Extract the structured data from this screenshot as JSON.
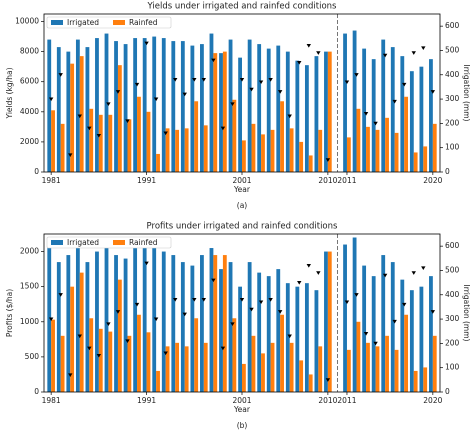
{
  "chart_data": [
    {
      "type": "bar",
      "title": "Yields under irrigated and rainfed conditions",
      "xlabel": "Year",
      "ylabel": "Yields (kg/ha)",
      "y2label": "Irrigation (mm)",
      "caption": "(a)",
      "x": [
        1981,
        1982,
        1983,
        1984,
        1985,
        1986,
        1987,
        1988,
        1989,
        1990,
        1991,
        1992,
        1993,
        1994,
        1995,
        1996,
        1997,
        1998,
        1999,
        2000,
        2001,
        2002,
        2003,
        2004,
        2005,
        2006,
        2007,
        2008,
        2009,
        2010,
        2011,
        2012,
        2013,
        2014,
        2015,
        2016,
        2017,
        2018,
        2019,
        2020
      ],
      "xticks": [
        1981,
        1991,
        2001,
        2010,
        2011,
        2020
      ],
      "vline_x": 2010.5,
      "ylim": [
        0,
        10500
      ],
      "yticks": [
        0,
        2000,
        4000,
        6000,
        8000,
        10000
      ],
      "y2lim": [
        0,
        650
      ],
      "y2ticks": [
        0,
        100,
        200,
        300,
        400,
        500,
        600
      ],
      "legend": "upper left",
      "series": [
        {
          "name": "Irrigated",
          "color": "#1f77b4",
          "values": [
            8800,
            8300,
            8000,
            8800,
            8300,
            8900,
            9200,
            8700,
            8500,
            8900,
            8900,
            9000,
            8900,
            8700,
            8700,
            8400,
            8500,
            9200,
            7900,
            8800,
            7600,
            8800,
            8500,
            8200,
            8400,
            8000,
            7400,
            7100,
            7700,
            8000,
            9200,
            9400,
            8200,
            7500,
            8800,
            8300,
            7700,
            6700,
            7000,
            7500
          ]
        },
        {
          "name": "Rainfed",
          "color": "#ff7f0e",
          "values": [
            4100,
            3200,
            7200,
            7700,
            4200,
            3800,
            3800,
            7100,
            3500,
            5000,
            4000,
            1200,
            2900,
            2800,
            2900,
            4700,
            3100,
            7900,
            8000,
            4800,
            2100,
            3200,
            2500,
            2800,
            4700,
            2900,
            2000,
            1100,
            2800,
            8000,
            2300,
            4200,
            3000,
            2800,
            3600,
            2600,
            5000,
            1300,
            1700,
            3200
          ]
        },
        {
          "color": "#000000",
          "marker": "v",
          "axis": "y2",
          "values": [
            300,
            400,
            70,
            230,
            180,
            150,
            280,
            330,
            210,
            360,
            530,
            300,
            160,
            380,
            320,
            380,
            380,
            460,
            180,
            280,
            380,
            340,
            370,
            380,
            330,
            230,
            450,
            520,
            490,
            50,
            370,
            400,
            240,
            200,
            480,
            290,
            360,
            490,
            510,
            330
          ]
        }
      ]
    },
    {
      "type": "bar",
      "title": "Profits under irrigated and rainfed conditions",
      "xlabel": "Year",
      "ylabel": "Profits ($/ha)",
      "y2label": "Irrigation (mm)",
      "caption": "(b)",
      "x": [
        1981,
        1982,
        1983,
        1984,
        1985,
        1986,
        1987,
        1988,
        1989,
        1990,
        1991,
        1992,
        1993,
        1994,
        1995,
        1996,
        1997,
        1998,
        1999,
        2000,
        2001,
        2002,
        2003,
        2004,
        2005,
        2006,
        2007,
        2008,
        2009,
        2010,
        2011,
        2012,
        2013,
        2014,
        2015,
        2016,
        2017,
        2018,
        2019,
        2020
      ],
      "xticks": [
        1981,
        1991,
        2001,
        2010,
        2011,
        2020
      ],
      "vline_x": 2010.5,
      "ylim": [
        0,
        2250
      ],
      "yticks": [
        0,
        500,
        1000,
        1500,
        2000
      ],
      "y2lim": [
        0,
        650
      ],
      "y2ticks": [
        0,
        100,
        200,
        300,
        400,
        500,
        600
      ],
      "legend": "upper left",
      "series": [
        {
          "name": "Irrigated",
          "color": "#1f77b4",
          "values": [
            2050,
            1850,
            1950,
            2050,
            1850,
            2000,
            2050,
            1950,
            1900,
            2050,
            2050,
            2050,
            2000,
            1950,
            1850,
            1800,
            1950,
            2050,
            1750,
            1850,
            1500,
            1850,
            1700,
            1650,
            1750,
            1550,
            1500,
            1550,
            1450,
            2000,
            2100,
            2200,
            1800,
            1650,
            1950,
            1850,
            1600,
            1450,
            1500,
            1650
          ]
        },
        {
          "name": "Rainfed",
          "color": "#ff7f0e",
          "values": [
            1030,
            800,
            1500,
            1700,
            1050,
            900,
            860,
            1600,
            800,
            1100,
            850,
            300,
            650,
            700,
            650,
            1050,
            700,
            1950,
            1950,
            1050,
            400,
            800,
            550,
            700,
            1100,
            700,
            450,
            250,
            650,
            2000,
            600,
            1000,
            700,
            650,
            800,
            600,
            1100,
            300,
            350,
            800
          ]
        },
        {
          "color": "#000000",
          "marker": "v",
          "axis": "y2",
          "values": [
            300,
            400,
            70,
            230,
            180,
            150,
            280,
            330,
            210,
            360,
            530,
            300,
            160,
            380,
            320,
            380,
            380,
            460,
            180,
            280,
            380,
            340,
            370,
            380,
            330,
            230,
            450,
            520,
            490,
            50,
            370,
            400,
            240,
            200,
            480,
            290,
            360,
            490,
            510,
            330
          ]
        }
      ]
    }
  ]
}
